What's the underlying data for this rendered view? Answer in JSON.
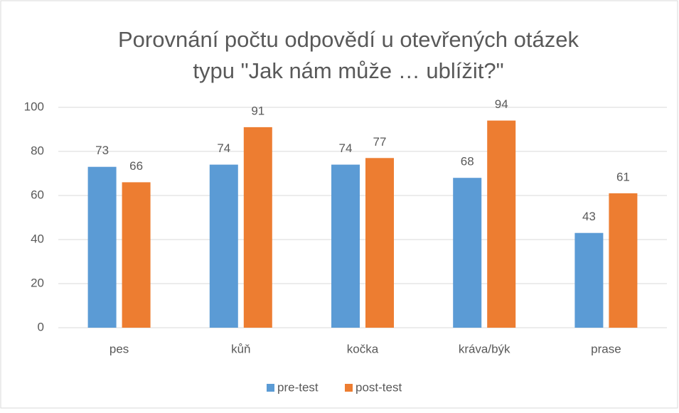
{
  "chart_data": {
    "type": "bar",
    "title": [
      "Porovnání počtu odpovědí u otevřených otázek",
      "typu \"Jak nám může … ublížit?\""
    ],
    "categories": [
      "pes",
      "kůň",
      "kočka",
      "kráva/býk",
      "prase"
    ],
    "series": [
      {
        "name": "pre-test",
        "color": "#5b9bd5",
        "values": [
          73,
          74,
          74,
          68,
          43
        ]
      },
      {
        "name": "post-test",
        "color": "#ed7d31",
        "values": [
          66,
          91,
          77,
          94,
          61
        ]
      }
    ],
    "ylim": [
      0,
      100
    ],
    "yticks": [
      0,
      20,
      40,
      60,
      80,
      100
    ],
    "grid": true,
    "legend": "bottom"
  }
}
